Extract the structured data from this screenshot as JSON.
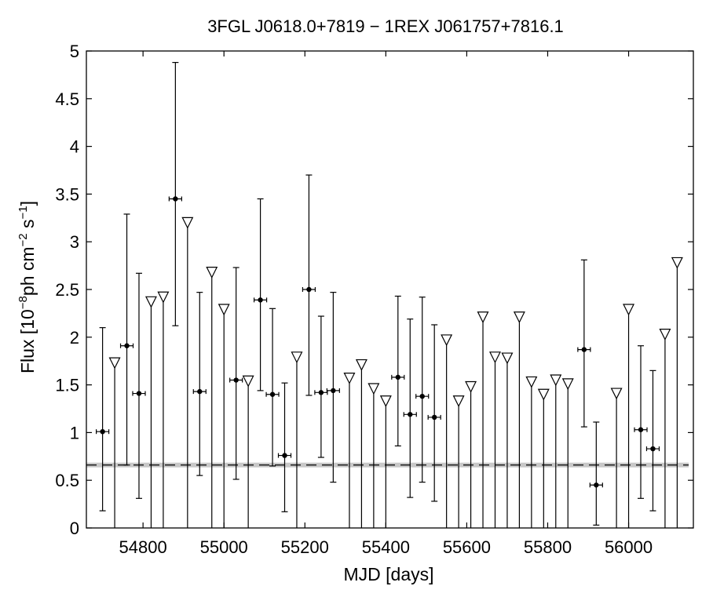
{
  "chart_data": {
    "type": "scatter",
    "title": "3FGL J0618.0+7819 − 1REX J061757+7816.1",
    "xlabel": "MJD [days]",
    "ylabel": {
      "prefix": "Flux [10",
      "exp1": "−8",
      "mid1": "ph cm",
      "exp2": "−2",
      "mid2": " s",
      "exp3": "−1",
      "suffix": "]"
    },
    "xlim": [
      54660,
      56160
    ],
    "ylim": [
      0,
      5
    ],
    "xticks": [
      54800,
      55000,
      55200,
      55400,
      55600,
      55800,
      56000
    ],
    "yticks": [
      0,
      0.5,
      1,
      1.5,
      2,
      2.5,
      3,
      3.5,
      4,
      4.5,
      5
    ],
    "xtick_labels": [
      "54800",
      "55000",
      "55200",
      "55400",
      "55600",
      "55800",
      "56000"
    ],
    "ytick_labels": [
      "0",
      "0.5",
      "1",
      "1.5",
      "2",
      "2.5",
      "3",
      "3.5",
      "4",
      "4.5",
      "5"
    ],
    "grid": false,
    "reference_line": {
      "y": 0.66,
      "style": "dashed",
      "band_color": "#c8c8c8"
    },
    "detections": [
      {
        "x": 54700,
        "y": 1.01,
        "ylo": 0.18,
        "yhi": 2.1
      },
      {
        "x": 54760,
        "y": 1.91,
        "ylo": 0.66,
        "yhi": 3.29
      },
      {
        "x": 54790,
        "y": 1.41,
        "ylo": 0.31,
        "yhi": 2.67
      },
      {
        "x": 54880,
        "y": 3.45,
        "ylo": 2.12,
        "yhi": 4.88
      },
      {
        "x": 54940,
        "y": 1.43,
        "ylo": 0.55,
        "yhi": 2.47
      },
      {
        "x": 55030,
        "y": 1.55,
        "ylo": 0.51,
        "yhi": 2.73
      },
      {
        "x": 55090,
        "y": 2.39,
        "ylo": 1.44,
        "yhi": 3.45
      },
      {
        "x": 55120,
        "y": 1.4,
        "ylo": 0.65,
        "yhi": 2.3
      },
      {
        "x": 55150,
        "y": 0.76,
        "ylo": 0.17,
        "yhi": 1.52
      },
      {
        "x": 55210,
        "y": 2.5,
        "ylo": 1.39,
        "yhi": 3.7
      },
      {
        "x": 55240,
        "y": 1.42,
        "ylo": 0.74,
        "yhi": 2.22
      },
      {
        "x": 55270,
        "y": 1.44,
        "ylo": 0.48,
        "yhi": 2.47
      },
      {
        "x": 55430,
        "y": 1.58,
        "ylo": 0.86,
        "yhi": 2.43
      },
      {
        "x": 55460,
        "y": 1.19,
        "ylo": 0.32,
        "yhi": 2.19
      },
      {
        "x": 55490,
        "y": 1.38,
        "ylo": 0.48,
        "yhi": 2.42
      },
      {
        "x": 55520,
        "y": 1.16,
        "ylo": 0.28,
        "yhi": 2.13
      },
      {
        "x": 55890,
        "y": 1.87,
        "ylo": 1.06,
        "yhi": 2.81
      },
      {
        "x": 55920,
        "y": 0.45,
        "ylo": 0.03,
        "yhi": 1.11
      },
      {
        "x": 56030,
        "y": 1.03,
        "ylo": 0.31,
        "yhi": 1.91
      },
      {
        "x": 56060,
        "y": 0.83,
        "ylo": 0.18,
        "yhi": 1.65
      }
    ],
    "upper_limits": [
      {
        "x": 54730,
        "y": 1.73
      },
      {
        "x": 54820,
        "y": 2.37
      },
      {
        "x": 54850,
        "y": 2.42
      },
      {
        "x": 54910,
        "y": 3.2
      },
      {
        "x": 54970,
        "y": 2.68
      },
      {
        "x": 55000,
        "y": 2.29
      },
      {
        "x": 55060,
        "y": 1.54
      },
      {
        "x": 55180,
        "y": 1.79
      },
      {
        "x": 55310,
        "y": 1.57
      },
      {
        "x": 55340,
        "y": 1.71
      },
      {
        "x": 55370,
        "y": 1.46
      },
      {
        "x": 55400,
        "y": 1.33
      },
      {
        "x": 55550,
        "y": 1.97
      },
      {
        "x": 55580,
        "y": 1.33
      },
      {
        "x": 55610,
        "y": 1.48
      },
      {
        "x": 55640,
        "y": 2.21
      },
      {
        "x": 55670,
        "y": 1.79
      },
      {
        "x": 55700,
        "y": 1.78
      },
      {
        "x": 55730,
        "y": 2.21
      },
      {
        "x": 55760,
        "y": 1.53
      },
      {
        "x": 55790,
        "y": 1.4
      },
      {
        "x": 55820,
        "y": 1.55
      },
      {
        "x": 55850,
        "y": 1.51
      },
      {
        "x": 55970,
        "y": 1.41
      },
      {
        "x": 56000,
        "y": 2.29
      },
      {
        "x": 56090,
        "y": 2.03
      },
      {
        "x": 56120,
        "y": 2.78
      }
    ]
  }
}
